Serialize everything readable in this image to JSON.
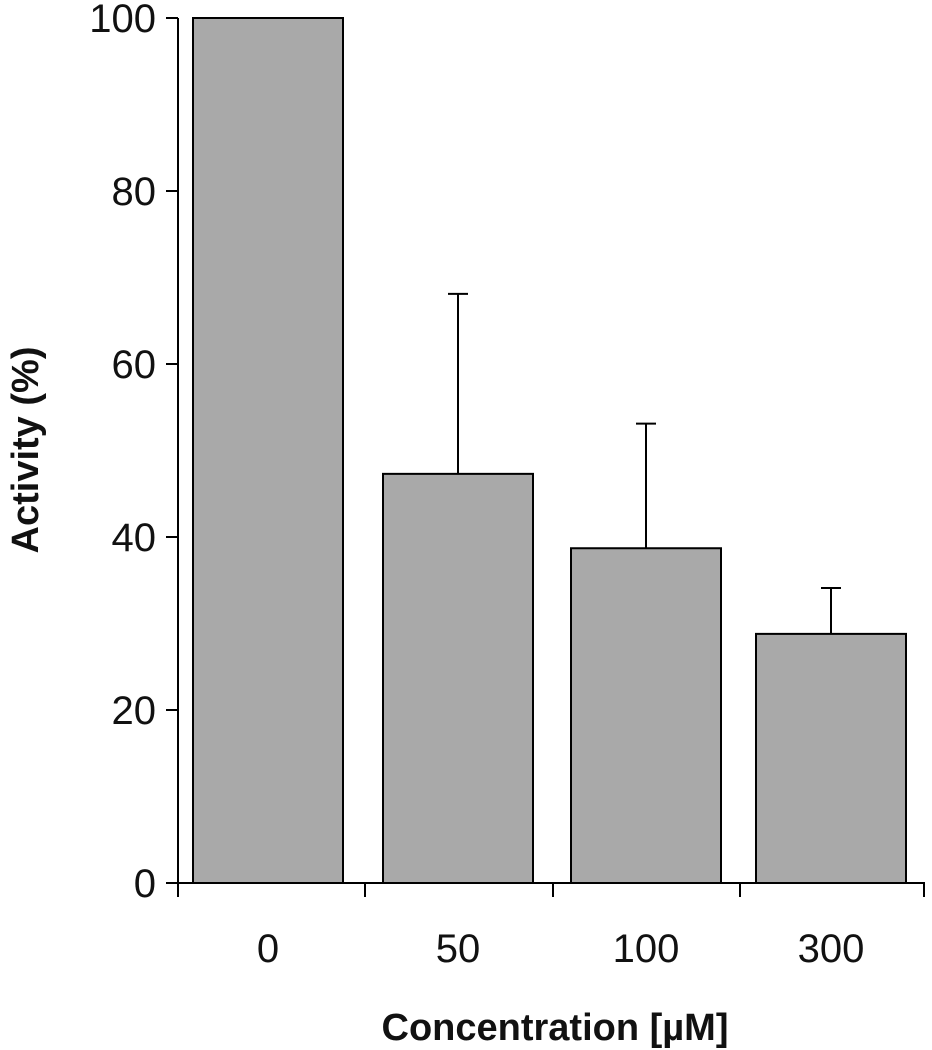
{
  "chart_data": {
    "type": "bar",
    "title": "",
    "xlabel": "Concentration  [µM]",
    "ylabel": "Activity (%)",
    "categories": [
      "0",
      "50",
      "100",
      "300"
    ],
    "values": [
      100,
      47.3,
      38.7,
      28.8
    ],
    "error_upper": [
      0,
      68.1,
      53.1,
      34.1
    ],
    "ylim": [
      0,
      100
    ],
    "yticks": [
      0,
      20,
      40,
      60,
      80,
      100
    ],
    "grid": false,
    "legend": "none",
    "bar_color": "#a9a9a9",
    "edge_color": "#000000"
  }
}
